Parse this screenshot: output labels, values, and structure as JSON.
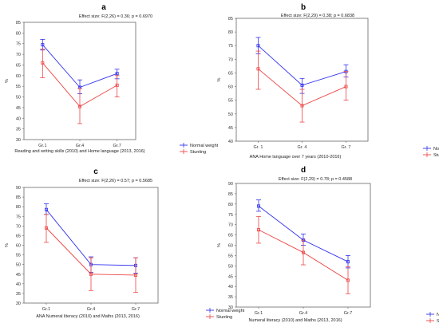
{
  "colors": {
    "normal": "#3333ee",
    "stunting": "#ee4444",
    "frame": "#666666"
  },
  "chart_data": [
    {
      "panel": "a",
      "type": "line",
      "effect": "Effect size: F(2,26) = 0.36; p = 0.6970",
      "xlabel": "Reading and writing skills (2010) and Home language (2013, 2016)",
      "ylabel": "%",
      "categories": [
        "Gr.1",
        "Gr.4",
        "Gr.7"
      ],
      "ylim": [
        30,
        85
      ],
      "yticks": [
        30,
        35,
        40,
        45,
        50,
        55,
        60,
        65,
        70,
        75,
        80,
        85
      ],
      "legend": "bottom-right",
      "series": [
        {
          "name": "Normal weight",
          "values": [
            74.5,
            54.5,
            61
          ],
          "err_low": [
            72,
            51.5,
            58.5
          ],
          "err_high": [
            77,
            58,
            63
          ]
        },
        {
          "name": "Stunting",
          "values": [
            66,
            45.5,
            55.5
          ],
          "err_low": [
            59,
            37.5,
            50
          ],
          "err_high": [
            72.5,
            54,
            60
          ]
        }
      ]
    },
    {
      "panel": "b",
      "type": "line",
      "effect": "Effect size: F(2,29) = 0.38; p = 0.6838",
      "xlabel": "ANA Home language over 7 years (2010-2016)",
      "ylabel": "%",
      "categories": [
        "Gr. 1",
        "Gr. 4",
        "Gr. 7"
      ],
      "ylim": [
        40,
        85
      ],
      "yticks": [
        40,
        45,
        50,
        55,
        60,
        65,
        70,
        75,
        80,
        85
      ],
      "legend": "bottom-right",
      "series": [
        {
          "name": "Normal weight",
          "values": [
            75,
            60.5,
            65.5
          ],
          "err_low": [
            72,
            57.5,
            63.5
          ],
          "err_high": [
            78,
            63,
            68
          ]
        },
        {
          "name": "Stunting",
          "values": [
            66.5,
            53,
            60
          ],
          "err_low": [
            59,
            47,
            55
          ],
          "err_high": [
            73,
            59,
            65.5
          ]
        }
      ]
    },
    {
      "panel": "c",
      "type": "line",
      "effect": "Effect size: F(2,26) = 0.57; p = 0.5685",
      "xlabel": "ANA Numeral literacy (2010) and Maths (2013, 2016)",
      "ylabel": "%",
      "categories": [
        "Gr.1",
        "Gr.4",
        "Gr.7"
      ],
      "ylim": [
        30,
        90
      ],
      "yticks": [
        30,
        35,
        40,
        45,
        50,
        55,
        60,
        65,
        70,
        75,
        80,
        85,
        90
      ],
      "legend": "bottom-right",
      "series": [
        {
          "name": "Normal weight",
          "values": [
            78.5,
            50,
            49.5
          ],
          "err_low": [
            76,
            46,
            45.5
          ],
          "err_high": [
            81.5,
            54,
            53.5
          ]
        },
        {
          "name": "Stunting",
          "values": [
            69,
            45,
            44.5
          ],
          "err_low": [
            61.5,
            36.5,
            35.5
          ],
          "err_high": [
            76,
            53.5,
            53.5
          ]
        }
      ]
    },
    {
      "panel": "d",
      "type": "line",
      "effect": "Effect size: F(2,29) = 0.78; p = 0.4588",
      "xlabel": "Numeral literacy (2010) and Maths (2013, 2016)",
      "ylabel": "%",
      "categories": [
        "Gr.1",
        "Gr.4",
        "Gr.7"
      ],
      "ylim": [
        30,
        90
      ],
      "yticks": [
        30,
        35,
        40,
        45,
        50,
        55,
        60,
        65,
        70,
        75,
        80,
        85,
        90
      ],
      "legend": "bottom-right",
      "series": [
        {
          "name": "Normal weight",
          "values": [
            79,
            62.5,
            52
          ],
          "err_low": [
            76.5,
            60,
            49
          ],
          "err_high": [
            82,
            65.5,
            55
          ]
        },
        {
          "name": "Stunting",
          "values": [
            67.5,
            56.5,
            43
          ],
          "err_low": [
            61,
            50.5,
            36.5
          ],
          "err_high": [
            74,
            62.5,
            49.5
          ]
        }
      ]
    }
  ]
}
